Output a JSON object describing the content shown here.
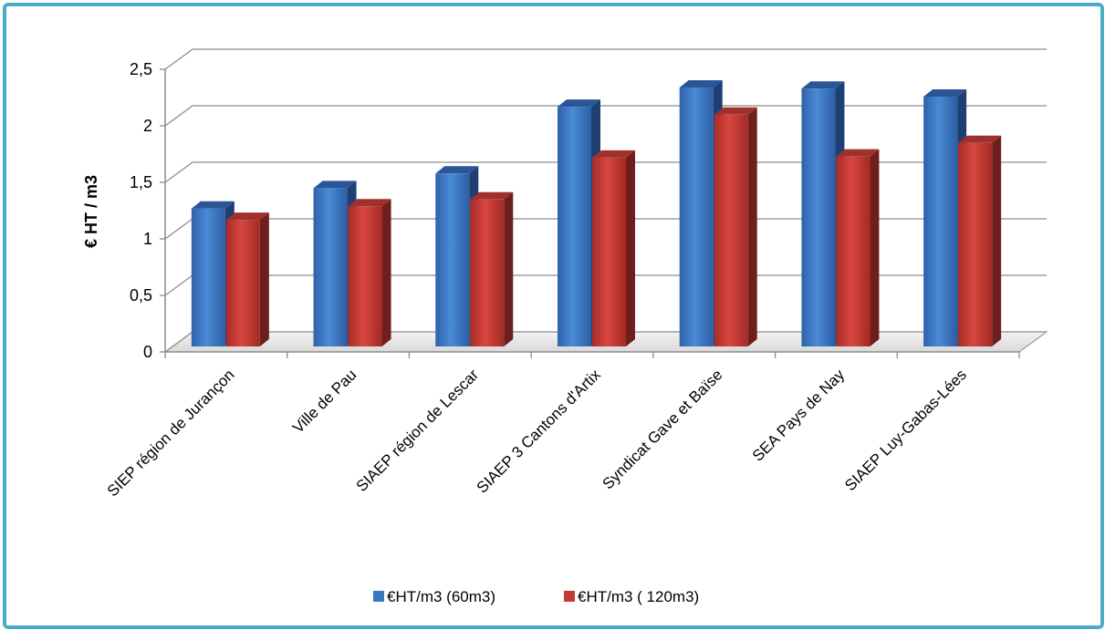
{
  "chart_data": {
    "type": "bar",
    "title": "",
    "xlabel": "",
    "ylabel": "€ HT / m3",
    "ylim": [
      0,
      2.5
    ],
    "yticks": [
      "0",
      "0,5",
      "1",
      "1,5",
      "2",
      "2,5"
    ],
    "grid": true,
    "legend_position": "bottom",
    "categories": [
      "SIEP région de Jurançon",
      "Ville de Pau",
      "SIAEP région de Lescar",
      "SIAEP 3 Cantons d'Artix",
      "Syndicat Gave et Baïse",
      "SEA Pays de Nay",
      "SIAEP Luy-Gabas-Lées"
    ],
    "series": [
      {
        "name": "€HT/m3 (60m3)",
        "color": "#3b78c4",
        "values": [
          1.22,
          1.4,
          1.53,
          2.12,
          2.29,
          2.28,
          2.21
        ]
      },
      {
        "name": "€HT/m3 ( 120m3)",
        "color": "#c43b35",
        "values": [
          1.12,
          1.24,
          1.3,
          1.67,
          2.05,
          1.68,
          1.8
        ]
      }
    ]
  }
}
